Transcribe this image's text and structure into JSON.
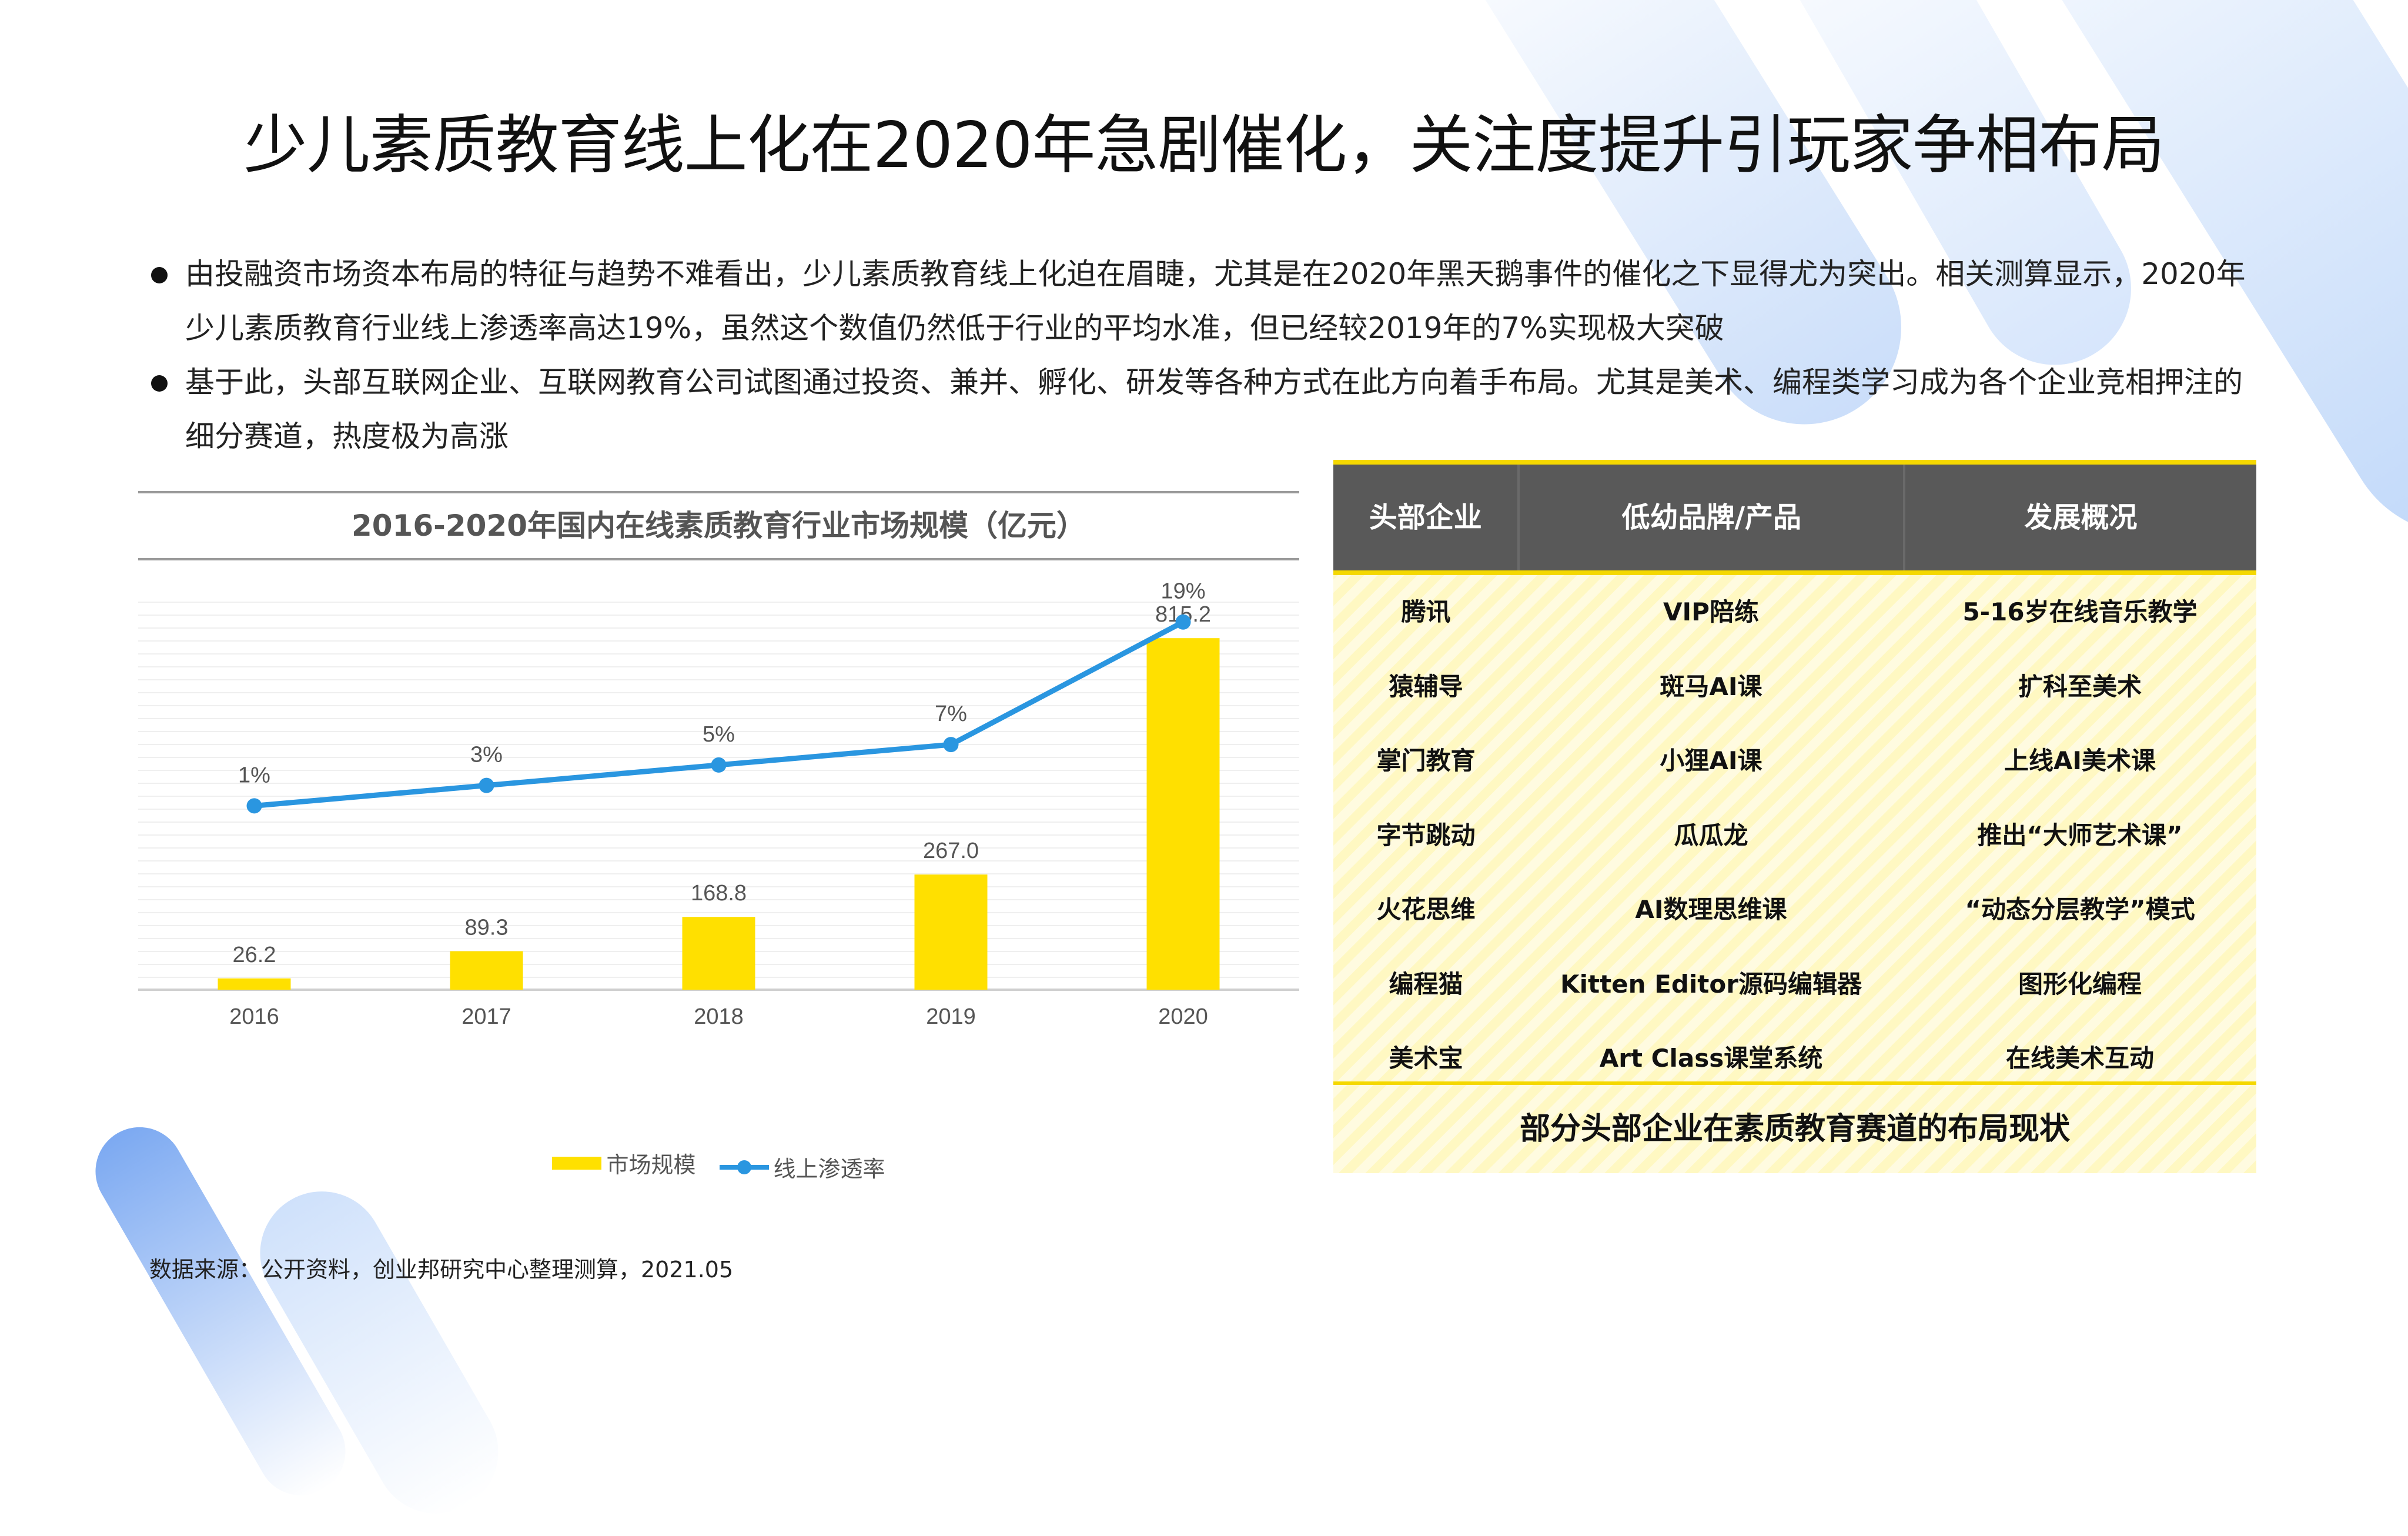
{
  "title": "少儿素质教育线上化在2020年急剧催化，关注度提升引玩家争相布局",
  "bullets": [
    "由投融资市场资本布局的特征与趋势不难看出，少儿素质教育线上化迫在眉睫，尤其是在2020年黑天鹅事件的催化之下显得尤为突出。相关测算显示，2020年少儿素质教育行业线上渗透率高达19%，虽然这个数值仍然低于行业的平均水准，但已经较2019年的7%实现极大突破",
    "基于此，头部互联网企业、互联网教育公司试图通过投资、兼并、孵化、研发等各种方式在此方向着手布局。尤其是美术、编程类学习成为各个企业竞相押注的细分赛道，热度极为高涨"
  ],
  "chart_data": {
    "type": "bar",
    "title": "2016-2020年国内在线素质教育行业市场规模（亿元）",
    "categories": [
      "2016",
      "2017",
      "2018",
      "2019",
      "2020"
    ],
    "series": [
      {
        "name": "市场规模",
        "type": "bar",
        "values": [
          26.2,
          89.3,
          168.8,
          267.0,
          815.2
        ],
        "labels": [
          "26.2",
          "89.3",
          "168.8",
          "267.0",
          "815.2"
        ],
        "color": "#ffe000"
      },
      {
        "name": "线上渗透率",
        "type": "line",
        "values": [
          1,
          3,
          5,
          7,
          19
        ],
        "labels": [
          "1%",
          "3%",
          "5%",
          "7%",
          "19%"
        ],
        "color": "#2a96e0"
      }
    ],
    "ylim_bar": [
      0,
      900
    ],
    "ylim_line": [
      -17,
      21
    ],
    "grid": true,
    "legend": "bottom"
  },
  "table": {
    "headers": [
      "头部企业",
      "低幼品牌/产品",
      "发展概况"
    ],
    "rows": [
      [
        "腾讯",
        "VIP陪练",
        "5-16岁在线音乐教学"
      ],
      [
        "猿辅导",
        "斑马AI课",
        "扩科至美术"
      ],
      [
        "掌门教育",
        "小狸AI课",
        "上线AI美术课"
      ],
      [
        "字节跳动",
        "瓜瓜龙",
        "推出“大师艺术课”"
      ],
      [
        "火花思维",
        "AI数理思维课",
        "“动态分层教学”模式"
      ],
      [
        "编程猫",
        "Kitten Editor源码编辑器",
        "图形化编程"
      ],
      [
        "美术宝",
        "Art Class课堂系统",
        "在线美术互动"
      ]
    ],
    "caption": "部分头部企业在素质教育赛道的布局现状"
  },
  "source": "数据来源：公开资料，创业邦研究中心整理测算，2021.05"
}
